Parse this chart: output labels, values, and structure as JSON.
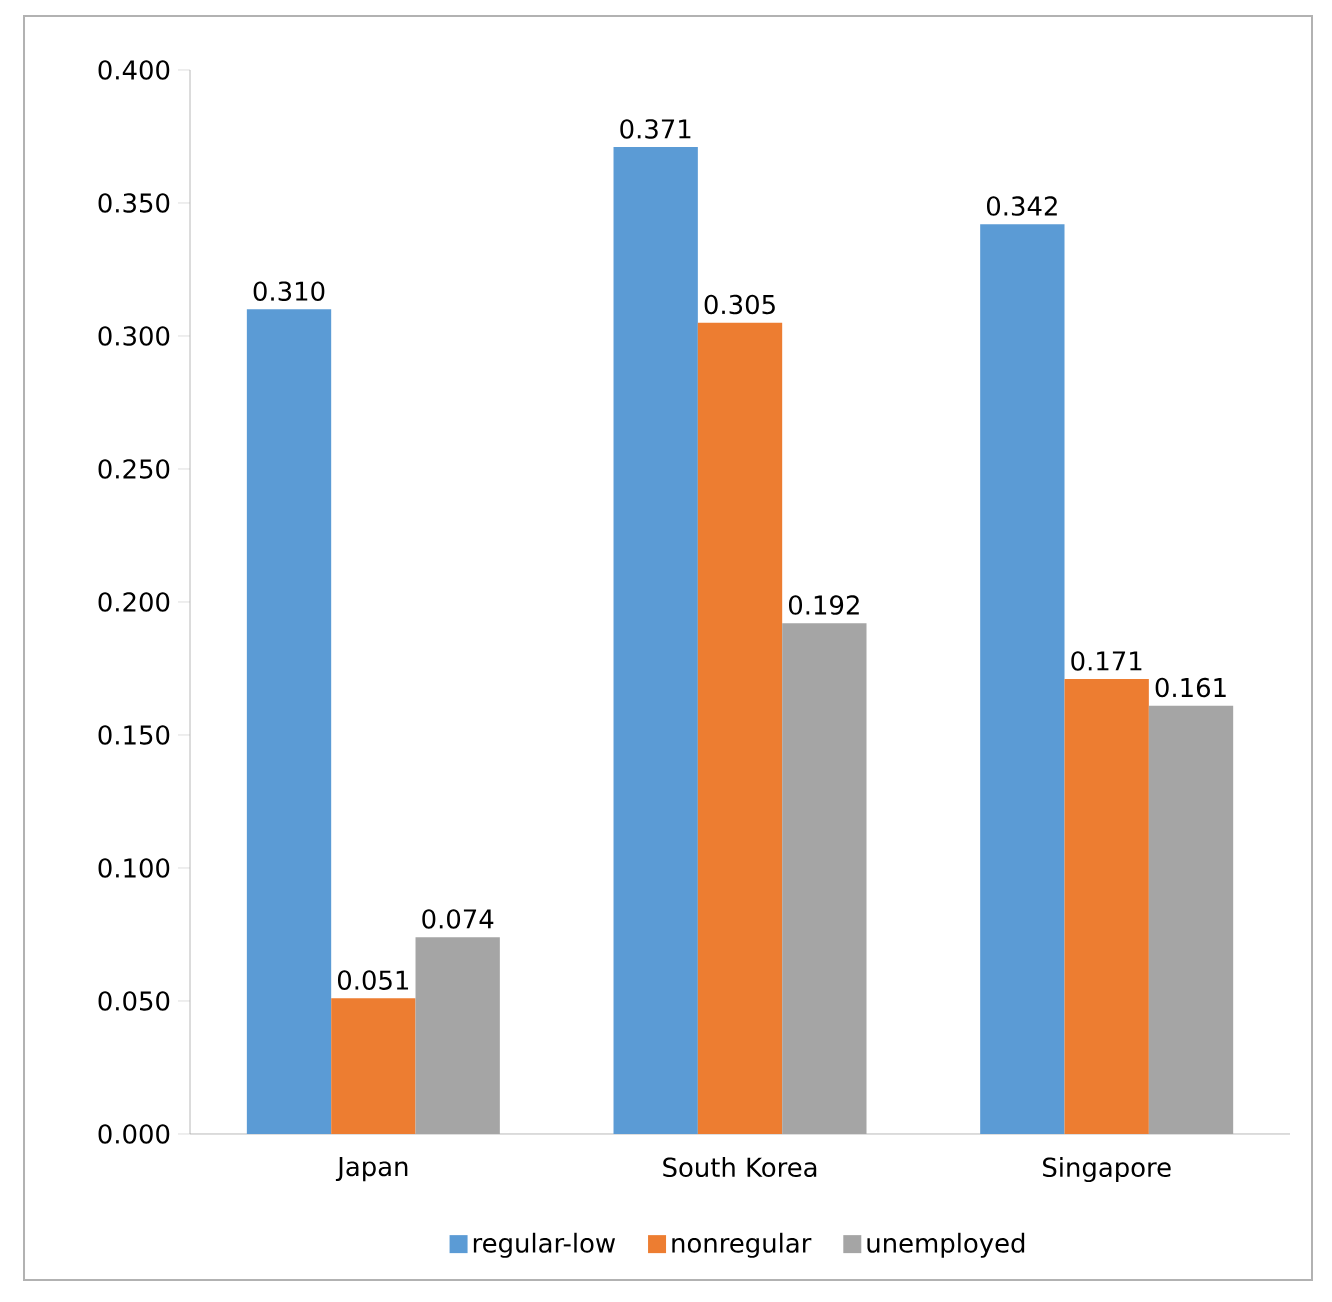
{
  "chart_data": {
    "type": "bar",
    "categories": [
      "Japan",
      "South Korea",
      "Singapore"
    ],
    "series": [
      {
        "name": "regular-low",
        "color": "#5b9bd5",
        "values": [
          0.31,
          0.371,
          0.342
        ],
        "value_labels": [
          "0.310",
          "0.371",
          "0.342"
        ]
      },
      {
        "name": "nonregular",
        "color": "#ed7d31",
        "values": [
          0.051,
          0.305,
          0.171
        ],
        "value_labels": [
          "0.051",
          "0.305",
          "0.171"
        ]
      },
      {
        "name": "unemployed",
        "color": "#a5a5a5",
        "values": [
          0.074,
          0.192,
          0.161
        ],
        "value_labels": [
          "0.074",
          "0.192",
          "0.161"
        ]
      }
    ],
    "ylim": [
      0,
      0.4
    ],
    "yticks": [
      {
        "value": 0,
        "label": "0.000"
      },
      {
        "value": 0.05,
        "label": "0.050"
      },
      {
        "value": 0.1,
        "label": "0.100"
      },
      {
        "value": 0.15,
        "label": "0.150"
      },
      {
        "value": 0.2,
        "label": "0.200"
      },
      {
        "value": 0.25,
        "label": "0.250"
      },
      {
        "value": 0.3,
        "label": "0.300"
      },
      {
        "value": 0.35,
        "label": "0.350"
      },
      {
        "value": 0.4,
        "label": "0.400"
      }
    ],
    "grid": false,
    "legend": "bottom"
  }
}
